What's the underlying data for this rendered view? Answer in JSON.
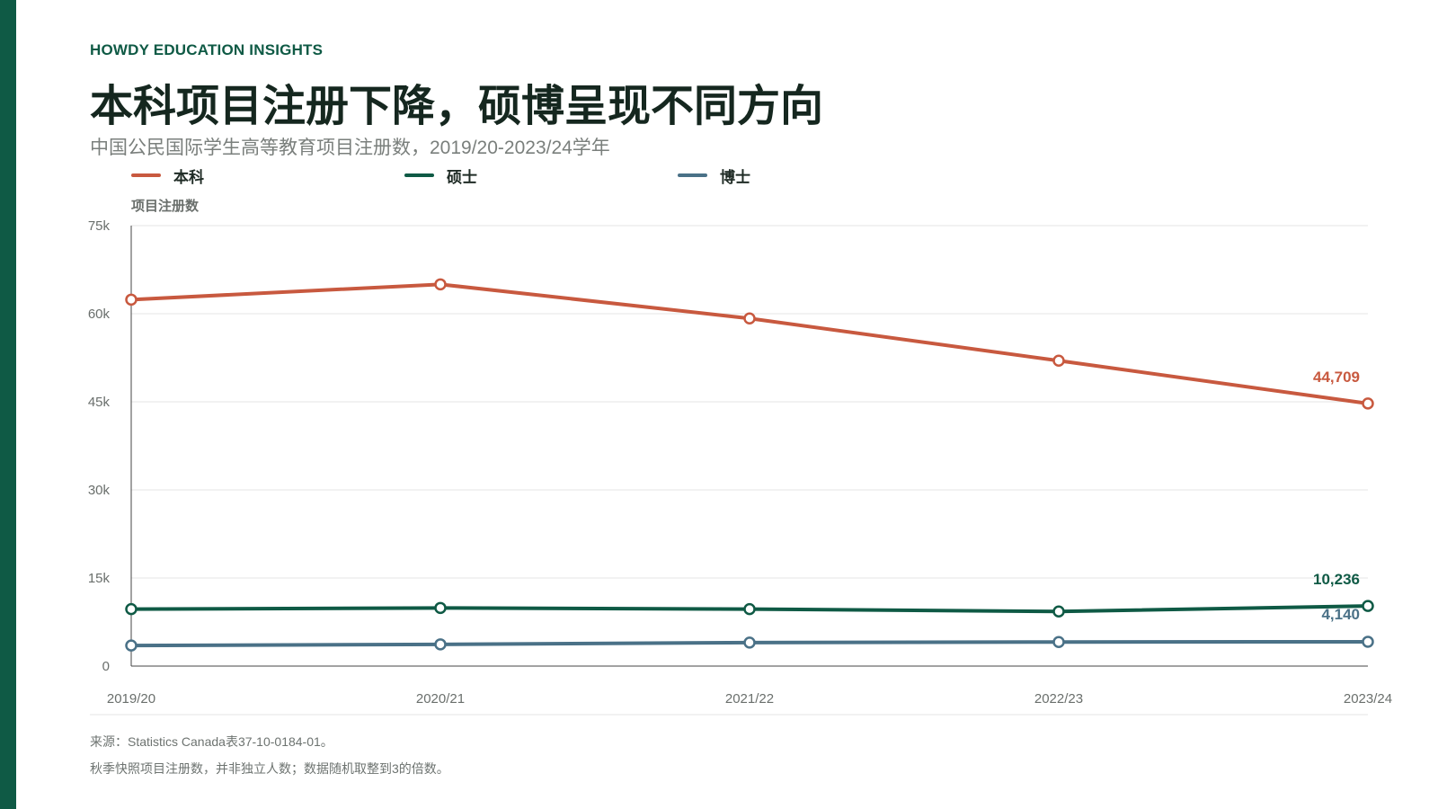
{
  "brand": "HOWDY EDUCATION INSIGHTS",
  "title": "本科项目注册下降，硕博呈现不同方向",
  "subtitle": "中国公民国际学生高等教育项目注册数，2019/20-2023/24学年",
  "footer": {
    "source": "来源：Statistics Canada表37-10-0184-01。",
    "note": "秋季快照项目注册数，并非独立人数；数据随机取整到3的倍数。"
  },
  "colors": {
    "accent": "#0f5a45",
    "undergrad": "#c8593f",
    "masters": "#0f5a45",
    "doctoral": "#4a7187",
    "grid": "#e6e6e6",
    "axis": "#444444",
    "tick_text": "#6a6f6c"
  },
  "chart_data": {
    "type": "line",
    "x": [
      "2019/20",
      "2020/21",
      "2021/22",
      "2022/23",
      "2023/24"
    ],
    "ylabel": "项目注册数",
    "ylim": [
      0,
      75000
    ],
    "yticks": [
      0,
      15000,
      30000,
      45000,
      60000,
      75000
    ],
    "ytick_labels": [
      "0",
      "15k",
      "30k",
      "45k",
      "60k",
      "75k"
    ],
    "grid": true,
    "legend_position": "top-left",
    "series": [
      {
        "name": "本科",
        "color": "#c8593f",
        "values": [
          62400,
          65000,
          59200,
          52000,
          44709
        ],
        "end_label": "44,709"
      },
      {
        "name": "硕士",
        "color": "#0f5a45",
        "values": [
          9700,
          9900,
          9700,
          9300,
          10236
        ],
        "end_label": "10,236"
      },
      {
        "name": "博士",
        "color": "#4a7187",
        "values": [
          3500,
          3700,
          4000,
          4100,
          4140
        ],
        "end_label": "4,140"
      }
    ]
  }
}
